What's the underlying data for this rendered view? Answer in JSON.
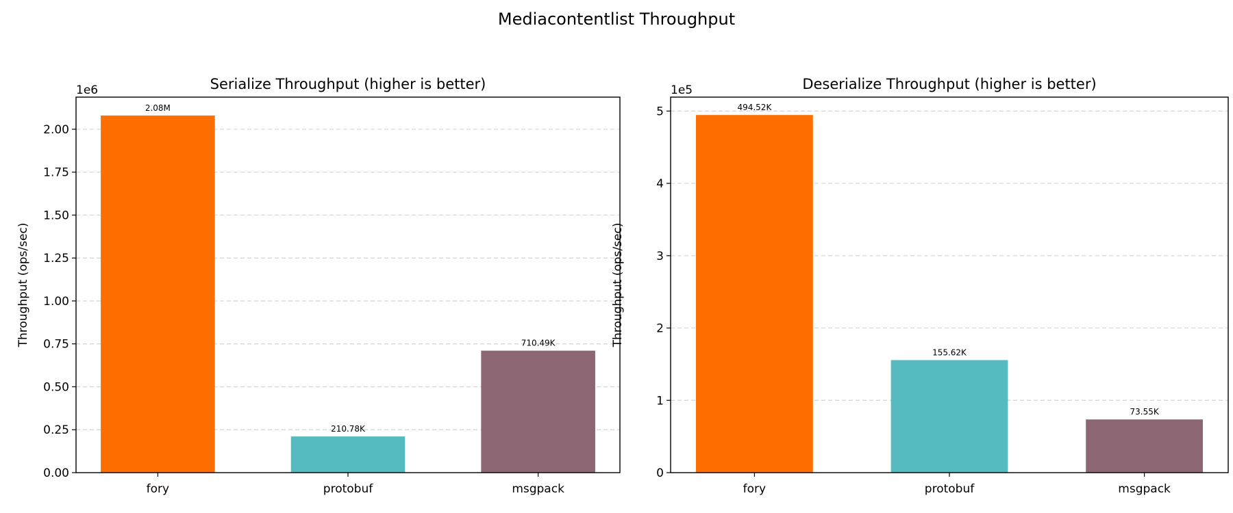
{
  "suptitle": "Mediacontentlist Throughput",
  "chart_data": [
    {
      "type": "bar",
      "title": "Serialize Throughput (higher is better)",
      "xlabel": "",
      "ylabel": "Throughput (ops/sec)",
      "offset_label": "1e6",
      "categories": [
        "fory",
        "protobuf",
        "msgpack"
      ],
      "values": [
        2080000,
        210780,
        710490
      ],
      "data_labels": [
        "2.08M",
        "210.78K",
        "710.49K"
      ],
      "colors": [
        "#FF6F00",
        "#56BBC1",
        "#8C6672"
      ],
      "ylim": [
        0,
        2187000
      ],
      "yticks": [
        0,
        250000,
        500000,
        750000,
        1000000,
        1250000,
        1500000,
        1750000,
        2000000
      ],
      "ytick_labels": [
        "0.00",
        "0.25",
        "0.50",
        "0.75",
        "1.00",
        "1.25",
        "1.50",
        "1.75",
        "2.00"
      ],
      "grid": "y-dashed"
    },
    {
      "type": "bar",
      "title": "Deserialize Throughput (higher is better)",
      "xlabel": "",
      "ylabel": "Throughput (ops/sec)",
      "offset_label": "1e5",
      "categories": [
        "fory",
        "protobuf",
        "msgpack"
      ],
      "values": [
        494520,
        155620,
        73550
      ],
      "data_labels": [
        "494.52K",
        "155.62K",
        "73.55K"
      ],
      "colors": [
        "#FF6F00",
        "#56BBC1",
        "#8C6672"
      ],
      "ylim": [
        0,
        519250
      ],
      "yticks": [
        0,
        100000,
        200000,
        300000,
        400000,
        500000
      ],
      "ytick_labels": [
        "0",
        "1",
        "2",
        "3",
        "4",
        "5"
      ],
      "grid": "y-dashed"
    }
  ]
}
